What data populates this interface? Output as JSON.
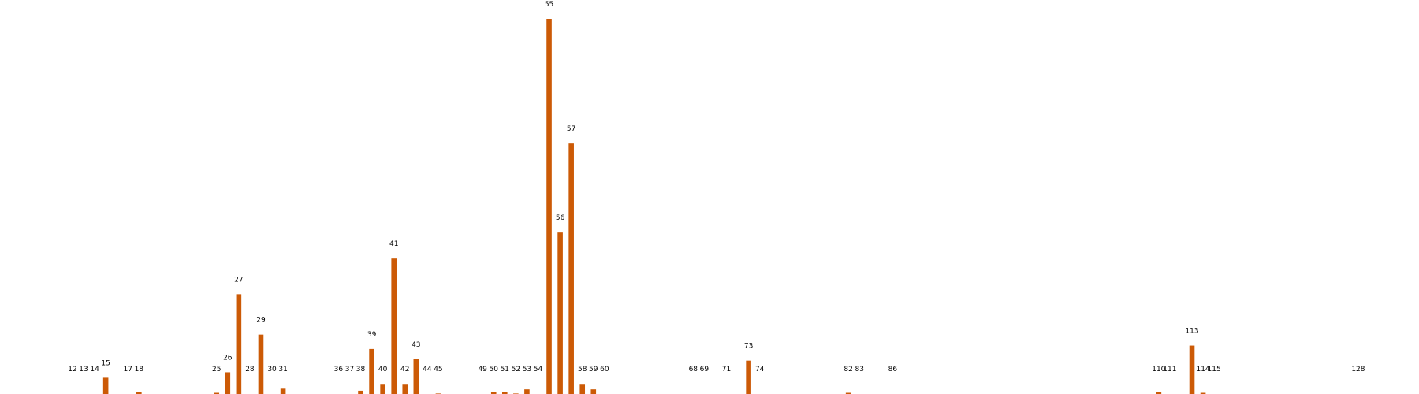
{
  "colors": {
    "bar": "#cc5a06",
    "background": "#ffffff",
    "label": "#000000"
  },
  "chart_data": {
    "type": "bar",
    "x_min": 6,
    "x_max": 130,
    "ylim": [
      0,
      55
    ],
    "title": "",
    "xlabel": "",
    "ylabel": "",
    "grid": false,
    "categories": [
      "12",
      "13",
      "14",
      "15",
      "17",
      "18",
      "25",
      "26",
      "27",
      "28",
      "29",
      "30",
      "31",
      "36",
      "37",
      "38",
      "39",
      "40",
      "41",
      "42",
      "43",
      "44",
      "45",
      "49",
      "50",
      "51",
      "52",
      "53",
      "54",
      "55",
      "56",
      "57",
      "58",
      "59",
      "60",
      "68",
      "69",
      "71",
      "73",
      "74",
      "82",
      "83",
      "86",
      "110",
      "111",
      "113",
      "114",
      "115",
      "128"
    ],
    "x": [
      12,
      13,
      14,
      15,
      17,
      18,
      25,
      26,
      27,
      28,
      29,
      30,
      31,
      36,
      37,
      38,
      39,
      40,
      41,
      42,
      43,
      44,
      45,
      49,
      50,
      51,
      52,
      53,
      54,
      55,
      56,
      57,
      58,
      59,
      60,
      68,
      69,
      71,
      73,
      74,
      82,
      83,
      86,
      110,
      111,
      113,
      114,
      115,
      128
    ],
    "values": [
      0.1,
      0,
      0,
      2.6,
      0.1,
      0.5,
      0.4,
      3.4,
      14.8,
      0,
      8.9,
      0.2,
      1.0,
      0.1,
      0.2,
      0.7,
      6.8,
      1.7,
      20.0,
      1.7,
      5.3,
      0.2,
      0.3,
      0.1,
      0.5,
      0.5,
      0.3,
      0.9,
      0.1,
      55,
      23.8,
      36.8,
      1.7,
      0.9,
      0,
      0,
      0.1,
      0,
      5.1,
      0.2,
      0.4,
      0.1,
      0,
      0.5,
      0.1,
      7.3,
      0.4,
      0,
      0
    ]
  }
}
